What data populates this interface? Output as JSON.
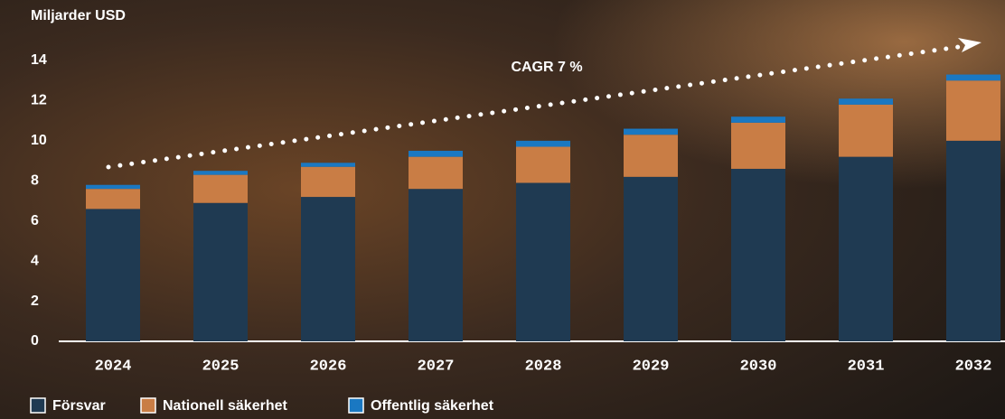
{
  "chart_data": {
    "type": "stacked_bar",
    "y_label": "Miljarder USD",
    "annotation": "CAGR 7 %",
    "categories": [
      "2024",
      "2025",
      "2026",
      "2027",
      "2028",
      "2029",
      "2030",
      "2031",
      "2032"
    ],
    "series": [
      {
        "name": "Försvar",
        "color": "#1f3a52",
        "values": [
          6.6,
          6.9,
          7.2,
          7.6,
          7.9,
          8.2,
          8.6,
          9.2,
          10.0
        ]
      },
      {
        "name": "Nationell säkerhet",
        "color": "#c97d45",
        "values": [
          1.0,
          1.4,
          1.5,
          1.6,
          1.8,
          2.1,
          2.3,
          2.6,
          3.0
        ]
      },
      {
        "name": "Offentlig säkerhet",
        "color": "#1a78c2",
        "values": [
          0.2,
          0.2,
          0.2,
          0.3,
          0.3,
          0.3,
          0.3,
          0.3,
          0.3
        ]
      }
    ],
    "ylim": [
      0,
      14
    ],
    "yticks": [
      0,
      2,
      4,
      6,
      8,
      10,
      12,
      14
    ],
    "grid": false
  }
}
